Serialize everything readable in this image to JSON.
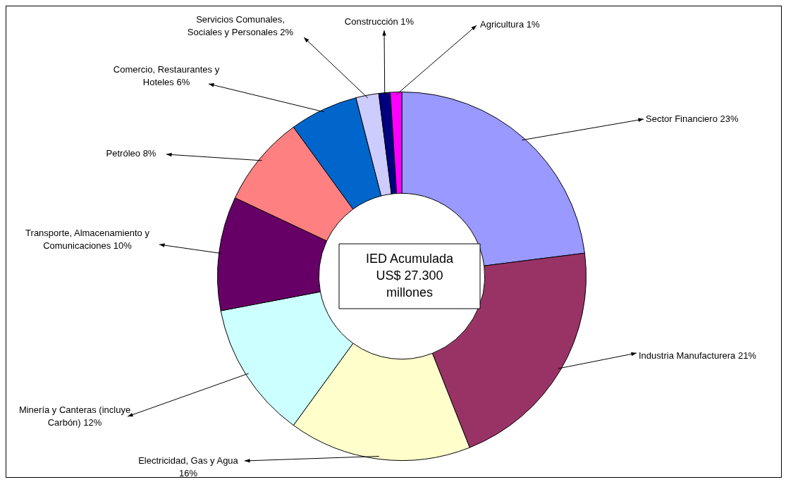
{
  "chart_data": {
    "type": "donut",
    "categories": [
      "Sector Financiero",
      "Industria Manufacturera",
      "Electricidad, Gas y Agua",
      "Minería y Canteras (incluye Carbón)",
      "Transporte, Almacenamiento y Comunicaciones",
      "Petróleo",
      "Comercio, Restaurantes y Hoteles",
      "Servicios Comunales, Sociales y Personales",
      "Construcción",
      "Agricultura"
    ],
    "values": [
      23,
      21,
      16,
      12,
      10,
      8,
      6,
      2,
      1,
      1
    ],
    "value_labels": [
      "23%",
      "21%",
      "16%",
      "12%",
      "10%",
      "8%",
      "6%",
      "2%",
      "1%",
      "1%"
    ],
    "colors": [
      "#9999ff",
      "#993366",
      "#ffffcc",
      "#ccffff",
      "#660066",
      "#ff8080",
      "#0066cc",
      "#ccccff",
      "#000080",
      "#ff00ff"
    ],
    "annotations": [
      "IED Acumulada US$ 27.300 millones"
    ],
    "legend": false
  }
}
